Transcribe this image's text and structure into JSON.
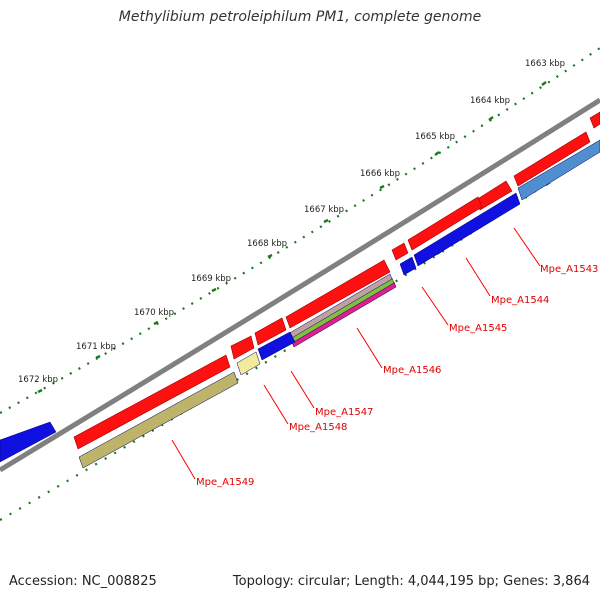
{
  "title": "Methylibium petroleiphilum PM1, complete genome",
  "footer": {
    "accession": "Accession: NC_008825",
    "summary": "Topology: circular; Length: 4,044,195 bp; Genes: 3,864"
  },
  "ruler": {
    "labels": [
      "1663 kbp",
      "1664 kbp",
      "1665 kbp",
      "1666 kbp",
      "1667 kbp",
      "1668 kbp",
      "1669 kbp",
      "1670 kbp",
      "1671 kbp",
      "1672 kbp"
    ]
  },
  "genes": [
    {
      "name": "Mpe_A1543",
      "color": "#4f8fd0"
    },
    {
      "name": "Mpe_A1544",
      "color": "#1010e0"
    },
    {
      "name": "Mpe_A1545",
      "color": "#1010e0"
    },
    {
      "name": "Mpe_A1546",
      "color": "#e0208a"
    },
    {
      "name": "Mpe_A1547",
      "color": "#f1ec9c"
    },
    {
      "name": "Mpe_A1548",
      "color": "#1010e0"
    },
    {
      "name": "Mpe_A1549",
      "color": "#bdb46a"
    }
  ],
  "colors": {
    "forward_cds": "#ff0000",
    "reverse_cds": "#1a1ae6",
    "backbone": "#7f7f7f",
    "tick": "#1a7a1a",
    "label_line": "#ff0000"
  }
}
